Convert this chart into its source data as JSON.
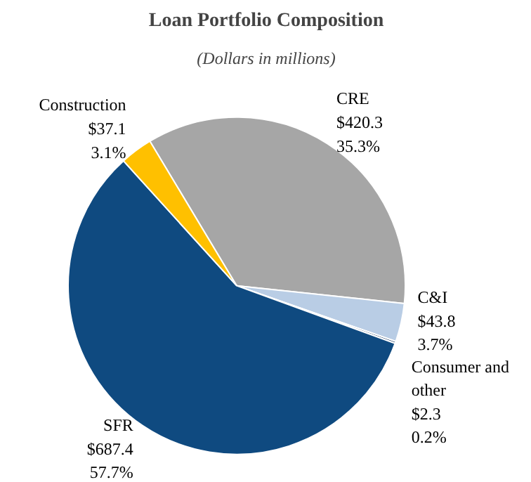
{
  "chart_data": {
    "type": "pie",
    "title": "Loan Portfolio Composition",
    "subtitle": "(Dollars in millions)",
    "categories": [
      "CRE",
      "C&I",
      "Consumer and other",
      "SFR",
      "Construction"
    ],
    "values": [
      420.3,
      43.8,
      2.3,
      687.4,
      37.1
    ],
    "colors": [
      "#a6a6a6",
      "#b9cde5",
      "#17375e",
      "#0f4a80",
      "#ffc000"
    ],
    "value_labels": [
      "$420.3\n35.3%",
      "$43.8\n3.7%",
      "$2.3\n0.2%",
      "$687.4\n57.7%",
      "$37.1\n3.1%"
    ]
  }
}
